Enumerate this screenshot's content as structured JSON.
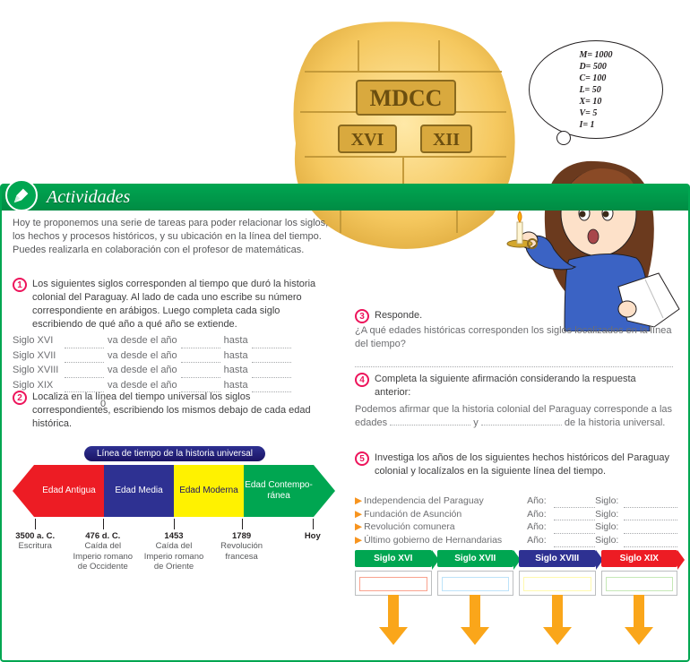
{
  "header": {
    "title": "Actividades"
  },
  "intro": "Hoy te proponemos una serie de  tareas para poder relacionar los siglos, los hechos y procesos históricos, y su ubicación en la línea del tiempo. Puedes realizarla en colaboración con el profesor de matemáticas.",
  "q1": {
    "num": "1",
    "text": "Los siguientes siglos corresponden al tiempo que duró la historia colonial del Paraguay. Al lado de cada uno escribe su número correspondiente en arábigos. Luego completa cada siglo escribiendo de qué año a qué año se extiende.",
    "rows": [
      {
        "label": "Siglo XVI",
        "mid": "va desde el año",
        "end": "hasta"
      },
      {
        "label": "Siglo XVII",
        "mid": "va desde el año",
        "end": "hasta"
      },
      {
        "label": "Siglo XVIII",
        "mid": "va desde el año",
        "end": "hasta"
      },
      {
        "label": "Siglo XIX",
        "mid": "va desde el año",
        "end": "hasta"
      }
    ]
  },
  "q2": {
    "num": "2",
    "text": "Localiza en la línea del tiempo universal los siglos correspondientes, escribiendo los mismos debajo de cada edad histórica."
  },
  "timeline": {
    "title": "Línea de tiempo de la historia universal",
    "zero": "0",
    "segments": [
      {
        "label": "Edad Antigua",
        "color": "#ed1c24"
      },
      {
        "label": "Edad Media",
        "color": "#2e3192"
      },
      {
        "label": "Edad Moderna",
        "color": "#fff200",
        "textColor": "#1b1464"
      },
      {
        "label": "Edad Contempo-\nránea",
        "color": "#00a651"
      }
    ],
    "markers": [
      {
        "pos": 7,
        "line1": "3500 a. C.",
        "line2": "Escritura"
      },
      {
        "pos": 28,
        "line1": "476 d. C.",
        "line2": "Caída del Imperio romano de Occidente"
      },
      {
        "pos": 50,
        "line1": "1453",
        "line2": "Caída del Imperio romano de Oriente"
      },
      {
        "pos": 71,
        "line1": "1789",
        "line2": "Revolución francesa"
      },
      {
        "pos": 93,
        "line1": "Hoy",
        "line2": ""
      }
    ]
  },
  "q3": {
    "num": "3",
    "title": "Responde.",
    "sub": "¿A qué edades históricas corresponden los siglos localizados en la línea del tiempo?"
  },
  "q4": {
    "num": "4",
    "title": "Completa la siguiente afirmación considerando la respuesta anterior:",
    "sub_a": "Podemos afirmar que la historia colonial del Paraguay corresponde a las edades ",
    "sub_b": " y ",
    "sub_c": " de la historia universal."
  },
  "q5": {
    "num": "5",
    "title": "Investiga los años de los siguientes hechos históricos del Paraguay colonial y localízalos en la siguiente línea del tiempo.",
    "facts": [
      "Independencia del Paraguay",
      "Fundación de Asunción",
      "Revolución comunera",
      "Último gobierno de Hernandarias"
    ],
    "anio_label": "Año:",
    "siglo_label": "Siglo:"
  },
  "siglo_bar": [
    {
      "label": "Siglo XVI",
      "color": "#00a651",
      "inner": "#f9a28e"
    },
    {
      "label": "Siglo XVII",
      "color": "#00a651",
      "inner": "#bde3f9"
    },
    {
      "label": "Siglo XVIII",
      "color": "#2e3192",
      "inner": "#fff9ae"
    },
    {
      "label": "Siglo XIX",
      "color": "#ed1c24",
      "inner": "#c5e8b7"
    }
  ],
  "roman": {
    "values": [
      "M= 1000",
      "D= 500",
      "C= 100",
      "L= 50",
      "X= 10",
      "V= 5",
      "I= 1"
    ],
    "inscriptions": {
      "top": "MDCC",
      "left": "XVI",
      "right": "XII"
    }
  },
  "colors": {
    "green": "#00a651",
    "magenta": "#ed145b",
    "orange_arrow": "#faa61a",
    "stone": "#f5c85f",
    "stone_line": "#c49a3a"
  }
}
